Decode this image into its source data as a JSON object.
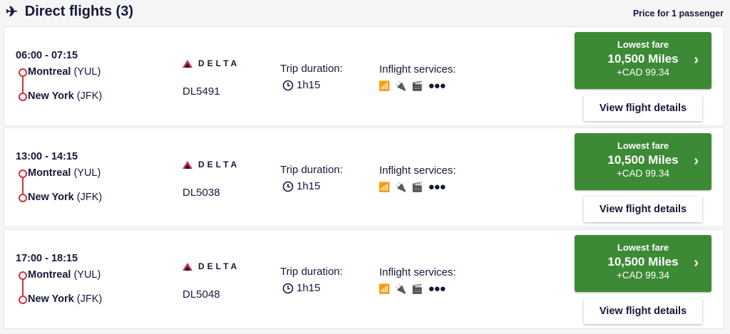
{
  "header": {
    "title": "Direct flights (3)",
    "price_note": "Price for 1 passenger",
    "icon": "airplane-icon"
  },
  "labels": {
    "trip_duration": "Trip duration:",
    "inflight": "Inflight services:",
    "lowest_fare": "Lowest fare",
    "view_details": "View flight details",
    "airline": "DELTA"
  },
  "colors": {
    "fare_green": "#3c8a35",
    "route_red": "#d2303f",
    "text_navy": "#14183a"
  },
  "flights": [
    {
      "times": "06:00 - 07:15",
      "origin_city": "Montreal",
      "origin_code": "(YUL)",
      "dest_city": "New York",
      "dest_code": "(JFK)",
      "flight_no": "DL5491",
      "duration": "1h15",
      "miles": "10,500 Miles",
      "cash": "+CAD 99.34"
    },
    {
      "times": "13:00 - 14:15",
      "origin_city": "Montreal",
      "origin_code": "(YUL)",
      "dest_city": "New York",
      "dest_code": "(JFK)",
      "flight_no": "DL5038",
      "duration": "1h15",
      "miles": "10,500 Miles",
      "cash": "+CAD 99.34"
    },
    {
      "times": "17:00 - 18:15",
      "origin_city": "Montreal",
      "origin_code": "(YUL)",
      "dest_city": "New York",
      "dest_code": "(JFK)",
      "flight_no": "DL5048",
      "duration": "1h15",
      "miles": "10,500 Miles",
      "cash": "+CAD 99.34"
    }
  ]
}
